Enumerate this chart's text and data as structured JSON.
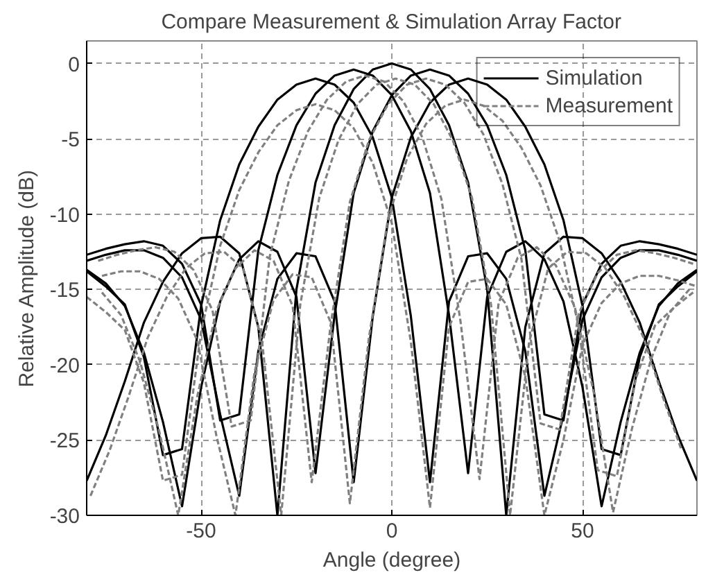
{
  "chart_data": {
    "type": "line",
    "title": "Compare Measurement & Simulation Array Factor",
    "xlabel": "Angle (degree)",
    "ylabel": "Relative Amplitude (dB)",
    "xlim": [
      -80,
      80
    ],
    "ylim": [
      -30,
      1.5
    ],
    "xticks": [
      -50,
      0,
      50
    ],
    "yticks": [
      -30,
      -25,
      -20,
      -15,
      -10,
      -5,
      0
    ],
    "grid": true,
    "legend": "top right",
    "x": [
      -80,
      -75,
      -70,
      -65,
      -60,
      -55,
      -50,
      -45,
      -40,
      -35,
      -30,
      -25,
      -20,
      -15,
      -10,
      -5,
      0,
      5,
      10,
      15,
      20,
      25,
      30,
      35,
      40,
      45,
      50,
      55,
      60,
      65,
      70,
      75,
      80
    ],
    "series": [
      {
        "name": "Simulation",
        "color": "#000000",
        "line_style": "solid",
        "values": [
          -27.7,
          -24.7,
          -21.1,
          -17.2,
          -14.5,
          -12.6,
          -11.6,
          -11.5,
          -12.6,
          -17.5,
          -30,
          -15.0,
          -7.9,
          -4.1,
          -1.7,
          -0.4,
          0,
          -0.4,
          -1.7,
          -4.1,
          -7.9,
          -15.0,
          -30,
          -17.5,
          -12.6,
          -11.5,
          -11.6,
          -12.6,
          -14.5,
          -17.2,
          -21.1,
          -24.7,
          -27.7
        ]
      },
      {
        "color": "#000000",
        "line_style": "solid",
        "values": [
          -13.8,
          -14.8,
          -16.0,
          -19.5,
          -26.0,
          -25.6,
          -16.1,
          -10.4,
          -6.7,
          -4.2,
          -2.4,
          -1.4,
          -1,
          -1.4,
          -2.6,
          -4.9,
          -8.9,
          -16.8,
          -27.8,
          -15.8,
          -12.8,
          -12.6,
          -14.3,
          -19.1,
          -28.7,
          -23.3,
          -17.0,
          -14.2,
          -12.9,
          -12.4,
          -12.4,
          -12.7,
          -13.1
        ]
      },
      {
        "color": "#000000",
        "line_style": "solid",
        "values": [
          -12.7,
          -12.3,
          -12.0,
          -11.8,
          -12.1,
          -13.3,
          -16.0,
          -23.7,
          -23.3,
          -12.4,
          -7.4,
          -4.1,
          -2.0,
          -0.8,
          -0.4,
          -0.8,
          -2.1,
          -4.5,
          -8.6,
          -16.7,
          -27.2,
          -15.5,
          -12.5,
          -11.8,
          -13.0,
          -15.8,
          -21.5,
          -29.4,
          -23.8,
          -19.2,
          -16.1,
          -14.6,
          -13.7
        ]
      },
      {
        "color": "#000000",
        "line_style": "solid",
        "values": [
          -13.7,
          -14.6,
          -16.1,
          -19.2,
          -23.8,
          -29.4,
          -21.5,
          -15.8,
          -13.0,
          -11.8,
          -12.5,
          -15.5,
          -27.2,
          -16.7,
          -8.6,
          -4.5,
          -2.1,
          -0.8,
          -0.4,
          -0.8,
          -2.0,
          -4.1,
          -7.4,
          -12.4,
          -23.3,
          -23.7,
          -16.0,
          -13.3,
          -12.1,
          -11.8,
          -12.0,
          -12.3,
          -12.7
        ]
      },
      {
        "color": "#000000",
        "line_style": "solid",
        "values": [
          -13.1,
          -12.7,
          -12.4,
          -12.4,
          -12.9,
          -14.2,
          -17.0,
          -23.3,
          -28.7,
          -19.1,
          -14.3,
          -12.6,
          -12.8,
          -15.8,
          -27.8,
          -16.8,
          -8.9,
          -4.9,
          -2.6,
          -1.4,
          -1,
          -1.4,
          -2.4,
          -4.2,
          -6.7,
          -10.4,
          -16.1,
          -25.6,
          -26.0,
          -19.5,
          -16.0,
          -14.8,
          -13.8
        ]
      },
      {
        "name": "Measurement",
        "color": "#808080",
        "line_style": "dashed",
        "x": [
          -79,
          -74,
          -69,
          -64,
          -59,
          -54,
          -49,
          -44,
          -39,
          -34,
          -29,
          -24,
          -19,
          -14,
          -9,
          -4,
          1,
          6,
          11,
          16,
          21,
          26,
          31,
          36,
          41,
          46,
          51,
          56,
          61,
          66,
          71,
          76
        ],
        "values": [
          -28.7,
          -25.7,
          -22.1,
          -18.2,
          -15.5,
          -13.6,
          -12.6,
          -12.5,
          -13.6,
          -18.5,
          -30,
          -16.0,
          -8.9,
          -5.1,
          -2.7,
          -1.4,
          -1,
          -1.4,
          -2.7,
          -5.1,
          -8.9,
          -16.0,
          -30,
          -18.5,
          -13.6,
          -12.5,
          -12.6,
          -13.6,
          -15.5,
          -18.2,
          -22.1,
          -25.7
        ]
      },
      {
        "color": "#808080",
        "line_style": "dashed",
        "values": [
          -15.5,
          -16.5,
          -17.7,
          -21.2,
          -27.7,
          -27.3,
          -17.8,
          -12.1,
          -8.4,
          -5.9,
          -4.1,
          -3.1,
          -2.7,
          -3.1,
          -4.3,
          -6.6,
          -10.6,
          -18.5,
          -29.5,
          -17.5,
          -14.5,
          -14.3,
          -16.0,
          -20.8,
          -30,
          -25.0,
          -18.7,
          -15.9,
          -14.6,
          -14.1,
          -14.1,
          -14.4,
          -14.8
        ]
      },
      {
        "color": "#808080",
        "line_style": "dashed",
        "x": [
          -77,
          -72,
          -67,
          -62,
          -57,
          -52,
          -47,
          -42,
          -37,
          -32,
          -27,
          -22,
          -17,
          -12,
          -7,
          -2,
          3,
          8,
          13,
          18,
          23,
          28,
          33,
          38,
          43,
          48,
          53,
          58,
          63,
          68,
          73,
          78
        ],
        "values": [
          -13.1,
          -12.7,
          -12.4,
          -12.2,
          -12.5,
          -13.7,
          -16.4,
          -24.1,
          -23.7,
          -12.8,
          -7.8,
          -4.5,
          -2.4,
          -1.2,
          -0.8,
          -1.2,
          -2.5,
          -4.9,
          -9.0,
          -17.1,
          -27.6,
          -15.9,
          -12.9,
          -12.2,
          -13.4,
          -16.2,
          -21.9,
          -29.8,
          -24.2,
          -19.6,
          -16.5,
          -15.0
        ]
      },
      {
        "color": "#808080",
        "line_style": "dashed",
        "x": [
          -76,
          -71,
          -66,
          -61,
          -56,
          -51,
          -46,
          -41,
          -36,
          -31,
          -26,
          -21,
          -16,
          -11,
          -6,
          -1,
          4,
          9,
          14,
          19,
          24,
          29,
          34,
          39,
          44,
          49,
          54,
          59,
          64,
          69,
          74,
          79
        ],
        "values": [
          -15.2,
          -16.7,
          -19.8,
          -24.4,
          -30,
          -22.1,
          -16.4,
          -13.6,
          -12.4,
          -13.1,
          -16.1,
          -27.8,
          -17.3,
          -9.2,
          -5.1,
          -2.7,
          -1.4,
          -1.0,
          -1.4,
          -2.6,
          -4.7,
          -8.0,
          -13.0,
          -23.9,
          -24.3,
          -16.6,
          -13.9,
          -12.7,
          -12.4,
          -12.6,
          -12.9,
          -13.3
        ]
      },
      {
        "color": "#808080",
        "line_style": "dashed",
        "x": [
          -76,
          -71,
          -66,
          -61,
          -56,
          -51,
          -46,
          -41,
          -36,
          -31,
          -26,
          -21,
          -16,
          -11,
          -6,
          -1,
          4,
          9,
          14,
          19,
          24,
          29,
          34,
          39,
          44,
          49,
          54,
          59,
          64,
          69,
          74,
          79
        ],
        "values": [
          -14.1,
          -13.8,
          -13.8,
          -14.3,
          -15.6,
          -18.4,
          -24.7,
          -30,
          -20.5,
          -15.7,
          -14.0,
          -14.2,
          -17.2,
          -29.2,
          -18.2,
          -10.3,
          -6.3,
          -4.0,
          -2.8,
          -2.4,
          -2.8,
          -3.8,
          -5.6,
          -8.1,
          -11.8,
          -17.5,
          -27.0,
          -27.4,
          -20.9,
          -17.4,
          -16.2,
          -15.2
        ]
      }
    ]
  }
}
